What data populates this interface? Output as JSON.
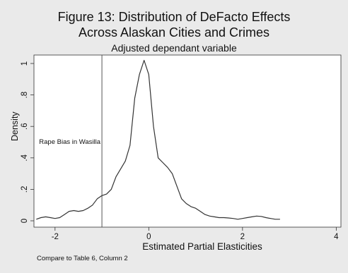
{
  "chart_data": {
    "type": "line",
    "title": "Figure 13: Distribution of DeFacto Effects",
    "title_line2": "Across Alaskan Cities and Crimes",
    "subtitle": "Adjusted dependant variable",
    "xlabel": "Estimated Partial Elasticities",
    "ylabel": "Density",
    "note": "Compare to Table 6, Column 2",
    "xlim": [
      -2.45,
      4.1
    ],
    "ylim": [
      0,
      1.05
    ],
    "x_ticks": [
      -2,
      0,
      2,
      4
    ],
    "x_tick_labels": [
      "-2",
      "0",
      "2",
      "4"
    ],
    "y_ticks": [
      0,
      0.2,
      0.4,
      0.6,
      0.8,
      1
    ],
    "y_tick_labels": [
      "0",
      ".2",
      ".4",
      ".6",
      ".8",
      "1"
    ],
    "grid": false,
    "line_color": "#333333",
    "series": [
      {
        "x": [
          -2.4,
          -2.3,
          -2.2,
          -2.1,
          -2.0,
          -1.9,
          -1.8,
          -1.7,
          -1.6,
          -1.5,
          -1.4,
          -1.3,
          -1.2,
          -1.1,
          -1.0,
          -0.9,
          -0.8,
          -0.7,
          -0.6,
          -0.5,
          -0.4,
          -0.3,
          -0.2,
          -0.1,
          0.0,
          0.1,
          0.2,
          0.3,
          0.4,
          0.5,
          0.6,
          0.7,
          0.8,
          0.9,
          1.0,
          1.1,
          1.2,
          1.3,
          1.4,
          1.5,
          1.6,
          1.7,
          1.8,
          1.9,
          2.0,
          2.1,
          2.2,
          2.3,
          2.4,
          2.5,
          2.6,
          2.7,
          2.8
        ],
        "y": [
          0.01,
          0.02,
          0.025,
          0.02,
          0.015,
          0.02,
          0.04,
          0.06,
          0.065,
          0.06,
          0.065,
          0.08,
          0.1,
          0.14,
          0.16,
          0.17,
          0.2,
          0.28,
          0.33,
          0.38,
          0.48,
          0.78,
          0.93,
          1.02,
          0.93,
          0.6,
          0.4,
          0.37,
          0.34,
          0.3,
          0.22,
          0.14,
          0.11,
          0.09,
          0.08,
          0.06,
          0.04,
          0.03,
          0.025,
          0.02,
          0.02,
          0.018,
          0.015,
          0.01,
          0.015,
          0.02,
          0.025,
          0.03,
          0.028,
          0.02,
          0.015,
          0.01,
          0.01
        ]
      }
    ],
    "reference_line": {
      "x": -1.0,
      "label": "Rape Bias in Wasilla"
    }
  }
}
